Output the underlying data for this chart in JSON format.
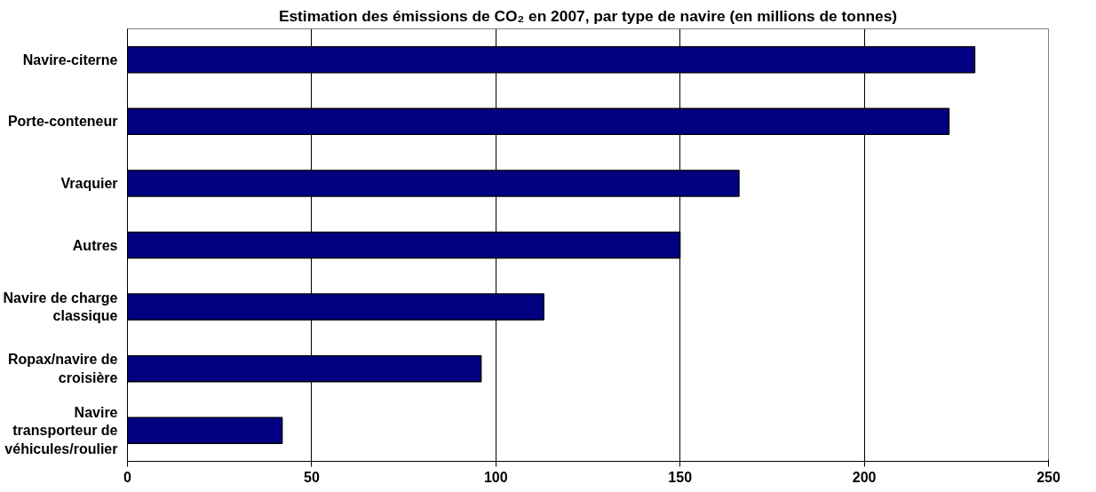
{
  "chart_data": {
    "type": "bar",
    "orientation": "horizontal",
    "title": "Estimation des émissions de CO₂ en 2007, par type de navire (en millions de tonnes)",
    "categories": [
      "Navire-citerne",
      "Porte-conteneur",
      "Vraquier",
      "Autres",
      "Navire de charge classique",
      "Ropax/navire de croisière",
      "Navire transporteur de véhicules/roulier"
    ],
    "values": [
      230,
      223,
      166,
      150,
      113,
      96,
      42
    ],
    "color": "#000080",
    "xlim": [
      0,
      250
    ],
    "xticks": [
      0,
      50,
      100,
      150,
      200,
      250
    ],
    "grid": "x"
  }
}
